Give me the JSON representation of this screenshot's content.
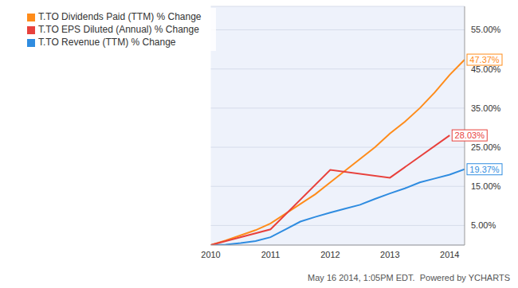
{
  "chart_data": {
    "type": "line",
    "annotation": "May 16 2014, 1:05PM EDT.  Powered by YCHARTS",
    "xlim": [
      2010,
      2014.25
    ],
    "xticks": [
      2010,
      2011,
      2012,
      2013,
      2014
    ],
    "ylim": [
      0,
      61
    ],
    "yticks": [
      {
        "value": 5,
        "label": "5.00%"
      },
      {
        "value": 15,
        "label": "15.00%"
      },
      {
        "value": 25,
        "label": "25.00%"
      },
      {
        "value": 35,
        "label": "35.00%"
      },
      {
        "value": 45,
        "label": "45.00%"
      },
      {
        "value": 55,
        "label": "55.00%"
      }
    ],
    "grid": true,
    "legend": "upper left",
    "series": [
      {
        "name": "T.TO Revenue (TTM) % Change",
        "color": "#2f8ce0",
        "x": [
          2010,
          2010.25,
          2010.5,
          2010.75,
          2011,
          2011.25,
          2011.5,
          2011.75,
          2012,
          2012.25,
          2012.5,
          2012.75,
          2013,
          2013.25,
          2013.5,
          2013.75,
          2014,
          2014.25
        ],
        "values": [
          0,
          0.1,
          0.5,
          1,
          2,
          4,
          6,
          7.2,
          8.3,
          9.3,
          10.3,
          11.8,
          13.2,
          14.5,
          16,
          17,
          18,
          19.37
        ],
        "value_labels": [
          null,
          null,
          null,
          null,
          null,
          null,
          null,
          null,
          null,
          null,
          null,
          null,
          null,
          null,
          null,
          null,
          null,
          "19.37%"
        ]
      },
      {
        "name": "T.TO Dividends Paid (TTM) % Change",
        "color": "#ff8c1a",
        "x": [
          2010,
          2010.25,
          2010.5,
          2010.75,
          2011,
          2011.25,
          2011.5,
          2011.75,
          2012,
          2012.25,
          2012.5,
          2012.75,
          2013,
          2013.25,
          2013.5,
          2013.75,
          2014,
          2014.25
        ],
        "values": [
          0,
          1.2,
          2.5,
          3.8,
          5.5,
          8,
          10.5,
          13,
          16,
          19,
          22,
          25,
          28.5,
          31.5,
          35,
          39,
          43.5,
          47.37
        ],
        "value_labels": [
          null,
          null,
          null,
          null,
          null,
          null,
          null,
          null,
          null,
          null,
          null,
          null,
          null,
          null,
          null,
          null,
          null,
          "47.37%"
        ]
      },
      {
        "name": "T.TO EPS Diluted (Annual) % Change",
        "color": "#e8413c",
        "x": [
          2010,
          2011,
          2012,
          2013,
          2014
        ],
        "values": [
          0,
          4,
          19.2,
          17.2,
          28.03
        ],
        "value_labels": [
          null,
          null,
          null,
          null,
          "28.03%"
        ]
      }
    ]
  }
}
